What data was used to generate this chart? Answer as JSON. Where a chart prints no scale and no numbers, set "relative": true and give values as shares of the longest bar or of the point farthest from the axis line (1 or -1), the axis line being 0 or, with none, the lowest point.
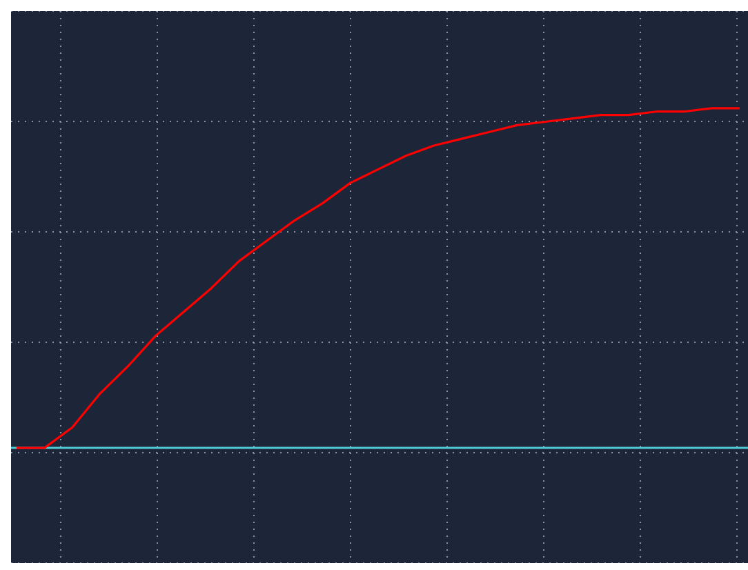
{
  "chart_data": {
    "type": "line",
    "relative": true,
    "ref_lines": [
      {
        "axis": "y",
        "value": 0,
        "color": "#4fc9d4"
      }
    ],
    "grid": true,
    "marker": "none",
    "line_style": "solid",
    "categories": [
      null,
      null,
      null,
      null,
      null,
      null,
      null,
      null,
      null,
      null,
      null,
      null,
      null,
      null,
      null,
      null,
      null,
      null,
      null,
      null,
      null,
      null,
      null,
      null,
      null,
      null,
      null
    ],
    "series": [
      {
        "color": "#ff0000",
        "values": [
          0,
          0,
          0.06,
          0.16,
          0.24,
          0.33,
          0.4,
          0.47,
          0.55,
          0.61,
          0.67,
          0.72,
          0.78,
          0.82,
          0.86,
          0.89,
          0.91,
          0.93,
          0.95,
          0.96,
          0.97,
          0.98,
          0.98,
          0.99,
          0.99,
          1,
          1
        ]
      }
    ]
  }
}
